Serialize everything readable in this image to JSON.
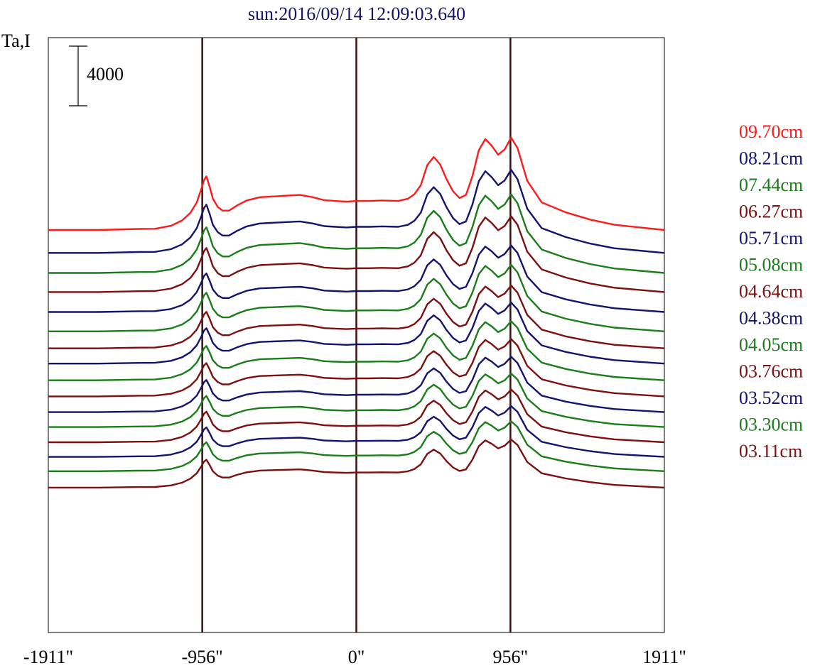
{
  "chart_data": {
    "type": "line",
    "title": "sun:2016/09/14 12:09:03.640",
    "ylabel": "Ta,I",
    "scale_bar_label": "4000",
    "scale_bar_value": 4000,
    "xlim": [
      -1911,
      1911
    ],
    "x_ticks": [
      {
        "value": -1911,
        "label": "-1911\""
      },
      {
        "value": -956,
        "label": "-956\""
      },
      {
        "value": 0,
        "label": "0\""
      },
      {
        "value": 956,
        "label": "956\""
      },
      {
        "value": 1911,
        "label": "1911\""
      }
    ],
    "vertical_markers": [
      -956,
      0,
      956
    ],
    "marker_color": "#3c1010",
    "grid": false,
    "legend_position": "right",
    "legend": [
      {
        "label": "09.70cm",
        "color": "#ff1a1a"
      },
      {
        "label": "08.21cm",
        "color": "#14146e"
      },
      {
        "label": "07.44cm",
        "color": "#1a7d1a"
      },
      {
        "label": "06.27cm",
        "color": "#7d0f0f"
      },
      {
        "label": "05.71cm",
        "color": "#14146e"
      },
      {
        "label": "05.08cm",
        "color": "#1a7d1a"
      },
      {
        "label": "04.64cm",
        "color": "#7d0f0f"
      },
      {
        "label": "04.38cm",
        "color": "#14146e"
      },
      {
        "label": "04.05cm",
        "color": "#1a7d1a"
      },
      {
        "label": "03.76cm",
        "color": "#7d0f0f"
      },
      {
        "label": "03.52cm",
        "color": "#14146e"
      },
      {
        "label": "03.30cm",
        "color": "#1a7d1a"
      },
      {
        "label": "03.11cm",
        "color": "#7d0f0f"
      }
    ],
    "series": [
      {
        "name": "09.70cm",
        "color": "#ff1a1a",
        "baseline": 0,
        "amplitude": 1.0
      },
      {
        "name": "08.21cm",
        "color": "#14146e",
        "baseline": -1540,
        "amplitude": 0.9
      },
      {
        "name": "07.44cm",
        "color": "#1a7d1a",
        "baseline": -2880,
        "amplitude": 0.85
      },
      {
        "name": "06.27cm",
        "color": "#7d0f0f",
        "baseline": -4160,
        "amplitude": 0.82
      },
      {
        "name": "05.71cm",
        "color": "#14146e",
        "baseline": -5500,
        "amplitude": 0.72
      },
      {
        "name": "05.08cm",
        "color": "#1a7d1a",
        "baseline": -6800,
        "amplitude": 0.72
      },
      {
        "name": "04.64cm",
        "color": "#7d0f0f",
        "baseline": -7940,
        "amplitude": 0.68
      },
      {
        "name": "04.38cm",
        "color": "#14146e",
        "baseline": -8960,
        "amplitude": 0.66
      },
      {
        "name": "04.05cm",
        "color": "#1a7d1a",
        "baseline": -10080,
        "amplitude": 0.64
      },
      {
        "name": "03.76cm",
        "color": "#7d0f0f",
        "baseline": -11160,
        "amplitude": 0.62
      },
      {
        "name": "03.52cm",
        "color": "#14146e",
        "baseline": -12220,
        "amplitude": 0.6
      },
      {
        "name": "03.30cm",
        "color": "#1a7d1a",
        "baseline": -13220,
        "amplitude": 0.58
      },
      {
        "name": "03.11cm",
        "color": "#7d0f0f",
        "baseline": -14240,
        "amplitude": 0.57
      },
      {
        "name": "",
        "color": "#14146e",
        "baseline": -15220,
        "amplitude": 0.55
      },
      {
        "name": "",
        "color": "#1a7d1a",
        "baseline": -16180,
        "amplitude": 0.54
      },
      {
        "name": "",
        "color": "#7d0f0f",
        "baseline": -17280,
        "amplitude": 0.52
      }
    ],
    "profile_x": [
      -1911,
      -1600,
      -1350,
      -1250,
      -1150,
      -1080,
      -1030,
      -990,
      -960,
      -945,
      -930,
      -910,
      -890,
      -860,
      -830,
      -790,
      -740,
      -680,
      -600,
      -520,
      -440,
      -350,
      -270,
      -200,
      -130,
      -60,
      0,
      80,
      160,
      260,
      320,
      360,
      400,
      440,
      480,
      520,
      560,
      600,
      640,
      680,
      720,
      760,
      800,
      840,
      880,
      920,
      960,
      1000,
      1060,
      1150,
      1300,
      1450,
      1600,
      1911
    ],
    "profile_y": [
      0,
      0,
      70,
      80,
      280,
      650,
      1150,
      1850,
      2800,
      3350,
      3600,
      2900,
      2100,
      1550,
      1300,
      1300,
      1650,
      1980,
      2200,
      2250,
      2300,
      2350,
      2200,
      2000,
      1950,
      1900,
      1950,
      1950,
      1980,
      1950,
      2100,
      2400,
      3000,
      4350,
      4900,
      4400,
      3400,
      2600,
      2150,
      2350,
      3600,
      5350,
      6100,
      5650,
      5050,
      5400,
      6200,
      5500,
      3300,
      1850,
      1180,
      700,
      350,
      0
    ]
  }
}
